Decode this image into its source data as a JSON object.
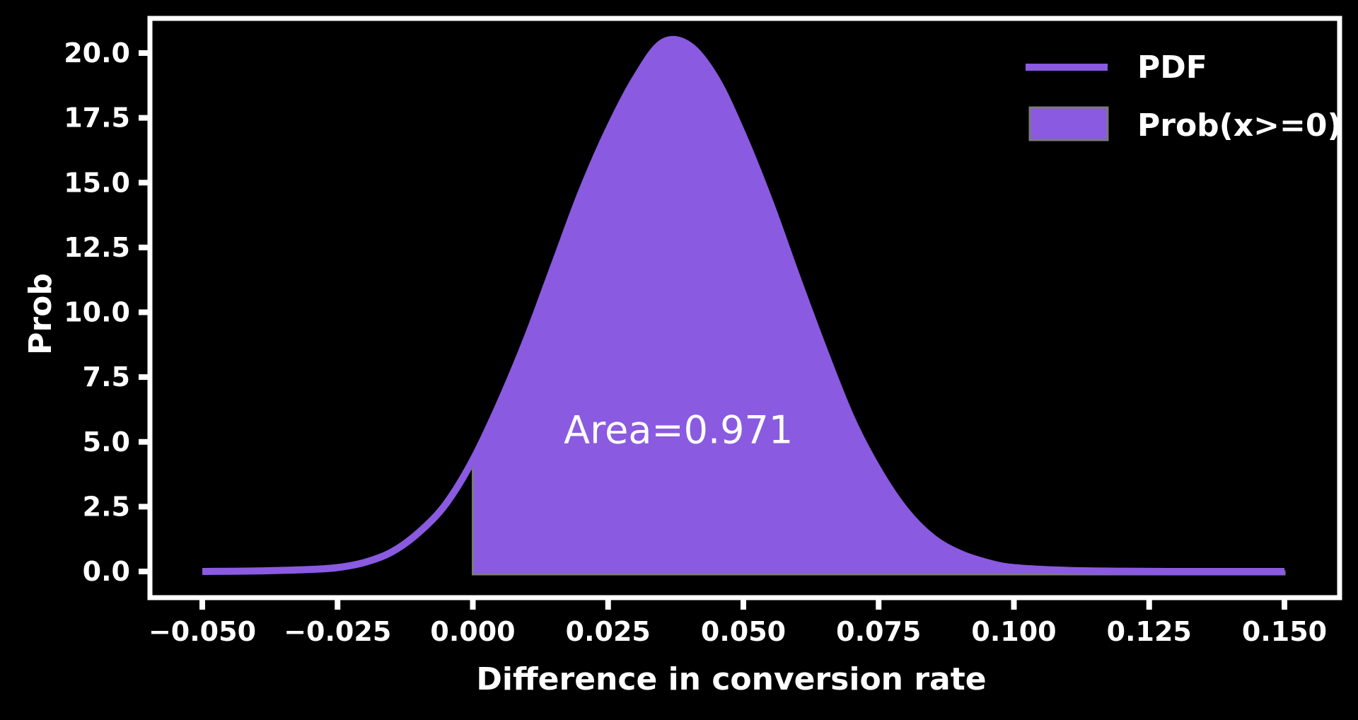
{
  "chart_data": {
    "type": "area",
    "xlabel": "Difference in conversion rate",
    "ylabel": "Prob",
    "xlim": [
      -0.05,
      0.15
    ],
    "ylim": [
      0,
      20
    ],
    "x_ticks": [
      "−0.050",
      "−0.025",
      "0.000",
      "0.025",
      "0.050",
      "0.075",
      "0.100",
      "0.125",
      "0.150"
    ],
    "x_tick_values": [
      -0.05,
      -0.025,
      0.0,
      0.025,
      0.05,
      0.075,
      0.1,
      0.125,
      0.15
    ],
    "y_ticks": [
      "0.0",
      "2.5",
      "5.0",
      "7.5",
      "10.0",
      "12.5",
      "15.0",
      "17.5",
      "20.0"
    ],
    "y_tick_values": [
      0,
      2.5,
      5,
      7.5,
      10,
      12.5,
      15,
      17.5,
      20
    ],
    "series": [
      {
        "name": "PDF",
        "kind": "line",
        "color": "#8a5ae0",
        "x": [
          -0.05,
          -0.04,
          -0.03,
          -0.025,
          -0.02,
          -0.015,
          -0.01,
          -0.005,
          0.0,
          0.005,
          0.01,
          0.015,
          0.02,
          0.025,
          0.03,
          0.035,
          0.04,
          0.045,
          0.05,
          0.055,
          0.06,
          0.065,
          0.07,
          0.075,
          0.08,
          0.085,
          0.09,
          0.095,
          0.1,
          0.11,
          0.12,
          0.13,
          0.14,
          0.15
        ],
        "y": [
          0.0,
          0.02,
          0.08,
          0.15,
          0.35,
          0.75,
          1.5,
          2.6,
          4.3,
          6.5,
          9.0,
          11.8,
          14.6,
          17.0,
          19.0,
          20.4,
          20.3,
          19.0,
          16.8,
          14.2,
          11.3,
          8.5,
          5.9,
          3.9,
          2.35,
          1.3,
          0.7,
          0.35,
          0.15,
          0.04,
          0.01,
          0.0,
          0.0,
          0.0
        ]
      },
      {
        "name": "Prob(x>=0)",
        "kind": "filled-area",
        "color": "#8a5ae0",
        "from_x": 0.0
      }
    ],
    "annotations": [
      {
        "text": "Area=0.971",
        "x": 0.038,
        "y": 5.5
      }
    ],
    "legend_position": "top-right",
    "grid": false
  }
}
